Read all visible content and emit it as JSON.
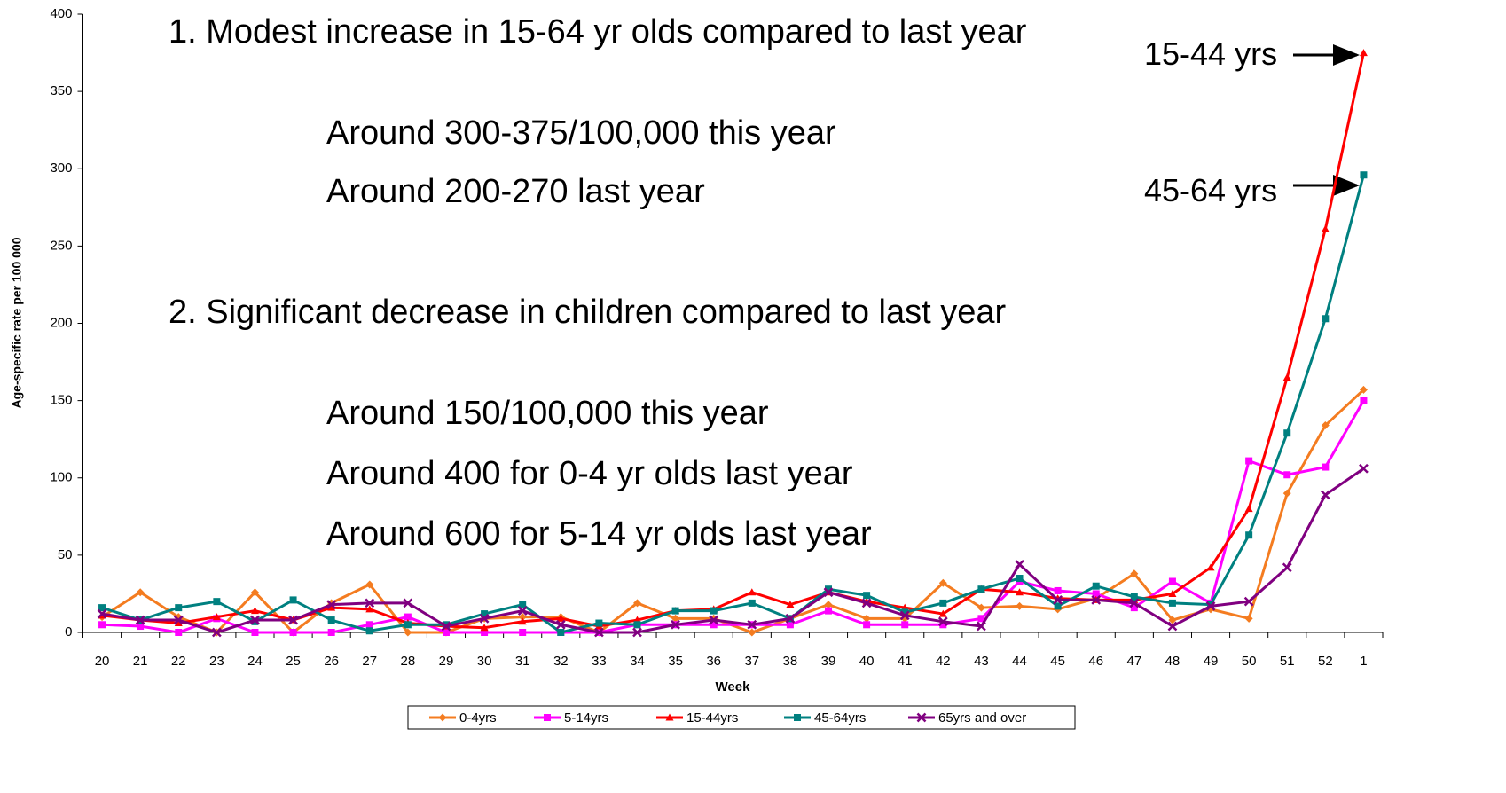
{
  "chart_data": {
    "type": "line",
    "xlabel": "Week",
    "ylabel": "Age-specific rate per 100 000",
    "categories": [
      "20",
      "21",
      "22",
      "23",
      "24",
      "25",
      "26",
      "27",
      "28",
      "29",
      "30",
      "31",
      "32",
      "33",
      "34",
      "35",
      "36",
      "37",
      "38",
      "39",
      "40",
      "41",
      "42",
      "43",
      "44",
      "45",
      "46",
      "47",
      "48",
      "49",
      "50",
      "51",
      "52",
      "1"
    ],
    "ylim": [
      0,
      400
    ],
    "yticks": [
      0,
      50,
      100,
      150,
      200,
      250,
      300,
      350,
      400
    ],
    "legend": "bottom",
    "series": [
      {
        "name": "0-4yrs",
        "color": "#f47c20",
        "marker": "diamond",
        "values": [
          10,
          26,
          10,
          0,
          26,
          0,
          19,
          31,
          0,
          0,
          9,
          10,
          10,
          0,
          19,
          9,
          9,
          0,
          9,
          18,
          9,
          9,
          32,
          16,
          17,
          15,
          22,
          38,
          8,
          15,
          9,
          90,
          134,
          157
        ]
      },
      {
        "name": "5-14yrs",
        "color": "#ff00ff",
        "marker": "square",
        "values": [
          5,
          4,
          0,
          9,
          0,
          0,
          0,
          5,
          10,
          0,
          0,
          0,
          0,
          0,
          5,
          5,
          5,
          5,
          5,
          14,
          5,
          5,
          5,
          9,
          33,
          27,
          25,
          16,
          33,
          19,
          111,
          102,
          107,
          150
        ]
      },
      {
        "name": "15-44yrs",
        "color": "#ff0000",
        "marker": "triangle",
        "values": [
          11,
          8,
          6,
          10,
          14,
          8,
          16,
          15,
          6,
          4,
          3,
          7,
          9,
          4,
          8,
          14,
          15,
          26,
          18,
          26,
          20,
          16,
          12,
          28,
          26,
          22,
          21,
          21,
          25,
          42,
          80,
          165,
          261,
          375
        ]
      },
      {
        "name": "45-64yrs",
        "color": "#008080",
        "marker": "square",
        "values": [
          16,
          8,
          16,
          20,
          7,
          21,
          8,
          1,
          5,
          5,
          12,
          18,
          0,
          6,
          5,
          14,
          14,
          19,
          9,
          28,
          24,
          13,
          19,
          28,
          35,
          17,
          30,
          23,
          19,
          18,
          63,
          129,
          203,
          296
        ]
      },
      {
        "name": "65yrs and over",
        "color": "#800080",
        "marker": "x",
        "values": [
          12,
          8,
          8,
          0,
          8,
          8,
          18,
          19,
          19,
          4,
          9,
          14,
          5,
          0,
          0,
          5,
          8,
          5,
          9,
          26,
          19,
          11,
          7,
          4,
          44,
          21,
          21,
          19,
          4,
          17,
          20,
          42,
          89,
          106
        ]
      }
    ],
    "annotations": [
      "1. Modest increase in 15-64 yr olds compared to last year",
      "Around 300-375/100,000 this year",
      "Around 200-270 last year",
      "2. Significant decrease in children compared to last year",
      "Around 150/100,000 this year",
      "Around 400 for 0-4 yr olds last year",
      "Around 600 for 5-14 yr olds last year",
      "15-44 yrs",
      "45-64 yrs"
    ]
  }
}
